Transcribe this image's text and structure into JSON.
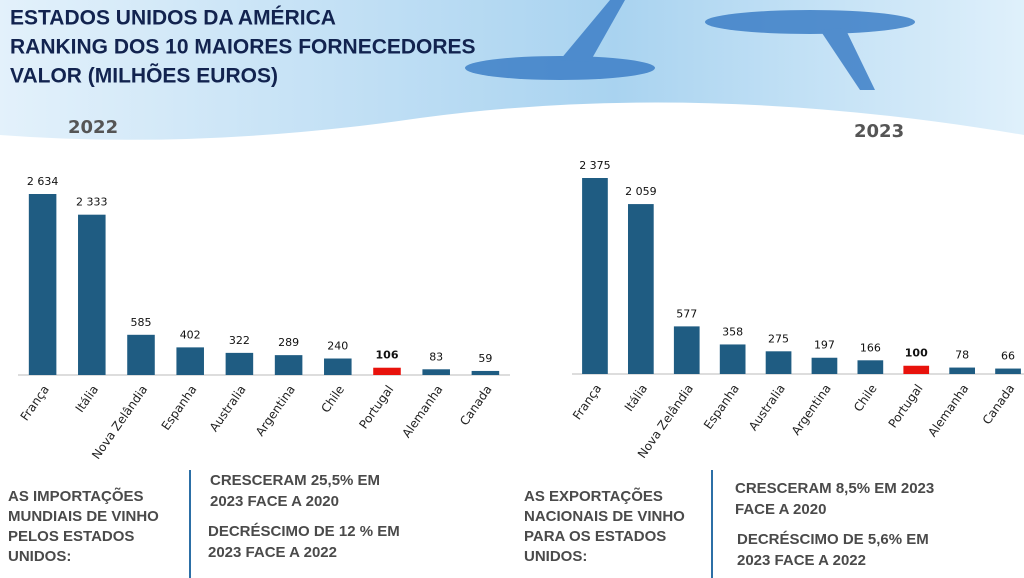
{
  "header": {
    "title_lines": [
      "ESTADOS UNIDOS DA AMÉRICA",
      "RANKING DOS 10 MAIORES FORNECEDORES",
      "VALOR (MILHÕES EUROS)"
    ]
  },
  "chart_data": [
    {
      "type": "bar",
      "title": "2022",
      "categories": [
        "França",
        "Itália",
        "Nova Zelândia",
        "Espanha",
        "Australia",
        "Argentina",
        "Chile",
        "Portugal",
        "Alemanha",
        "Canada"
      ],
      "values": [
        2634,
        2333,
        585,
        402,
        322,
        289,
        240,
        106,
        83,
        59
      ],
      "value_labels": [
        "2 634",
        "2 333",
        "585",
        "402",
        "322",
        "289",
        "240",
        "106",
        "83",
        "59"
      ],
      "colors": [
        "#1f5c82",
        "#1f5c82",
        "#1f5c82",
        "#1f5c82",
        "#1f5c82",
        "#1f5c82",
        "#1f5c82",
        "#e8120c",
        "#1f5c82",
        "#1f5c82"
      ]
    },
    {
      "type": "bar",
      "title": "2023",
      "categories": [
        "França",
        "Itália",
        "Nova Zelândia",
        "Espanha",
        "Australia",
        "Argentina",
        "Chile",
        "Portugal",
        "Alemanha",
        "Canada"
      ],
      "values": [
        2375,
        2059,
        577,
        358,
        275,
        197,
        166,
        100,
        78,
        66
      ],
      "value_labels": [
        "2 375",
        "2 059",
        "577",
        "358",
        "275",
        "197",
        "166",
        "100",
        "78",
        "66"
      ],
      "colors": [
        "#1f5c82",
        "#1f5c82",
        "#1f5c82",
        "#1f5c82",
        "#1f5c82",
        "#1f5c82",
        "#1f5c82",
        "#e8120c",
        "#1f5c82",
        "#1f5c82"
      ]
    }
  ],
  "notes": [
    {
      "subject": [
        "AS IMPORTAÇÕES",
        "MUNDIAIS DE VINHO",
        "PELOS ESTADOS",
        "UNIDOS:"
      ],
      "facts": [
        [
          "CRESCERAM 25,5% EM",
          "2023 FACE A 2020"
        ],
        [
          "DECRÉSCIMO DE 12 % EM",
          "2023 FACE A 2022"
        ]
      ]
    },
    {
      "subject": [
        "AS EXPORTAÇÕES",
        "NACIONAIS DE VINHO",
        "PARA OS ESTADOS",
        "UNIDOS:"
      ],
      "facts": [
        [
          "CRESCERAM 8,5% EM 2023",
          "FACE A 2020"
        ],
        [
          "DECRÉSCIMO DE  5,6% EM",
          "2023 FACE A 2022"
        ]
      ]
    }
  ]
}
